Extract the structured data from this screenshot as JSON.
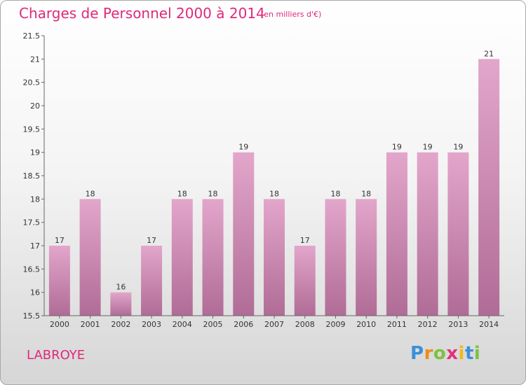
{
  "chart_data": {
    "type": "bar",
    "title": "Charges de Personnel 2000 à 2014",
    "subtitle": "(en milliers d'€)",
    "categories": [
      "2000",
      "2001",
      "2002",
      "2003",
      "2004",
      "2005",
      "2006",
      "2007",
      "2008",
      "2009",
      "2010",
      "2011",
      "2012",
      "2013",
      "2014"
    ],
    "values": [
      17,
      18,
      16,
      17,
      18,
      18,
      19,
      18,
      17,
      18,
      18,
      19,
      19,
      19,
      21
    ],
    "data_labels": [
      "17",
      "18",
      "16",
      "17",
      "18",
      "18",
      "19",
      "18",
      "17",
      "18",
      "18",
      "19",
      "19",
      "19",
      "21"
    ],
    "xlabel": "",
    "ylabel": "",
    "ylim": [
      15.5,
      21.5
    ],
    "yticks": [
      15.5,
      16,
      16.5,
      17,
      17.5,
      18,
      18.5,
      19,
      19.5,
      20,
      20.5,
      21,
      21.5
    ],
    "ytick_labels": [
      "15.5",
      "16",
      "16.5",
      "17",
      "17.5",
      "18",
      "18.5",
      "19",
      "19.5",
      "20",
      "20.5",
      "21",
      "21.5"
    ],
    "grid": false,
    "bar_color_top": "#e3a6cb",
    "bar_color_bottom": "#b06c96"
  },
  "footer": {
    "commune": "LABROYE"
  },
  "logo": {
    "letters": [
      {
        "char": "P",
        "color": "#3b8fd8"
      },
      {
        "char": "r",
        "color": "#f08a1c"
      },
      {
        "char": "o",
        "color": "#7cc242"
      },
      {
        "char": "x",
        "color": "#e2337a"
      },
      {
        "char": "i",
        "color": "#f0b81c"
      },
      {
        "char": "t",
        "color": "#3b8fd8"
      },
      {
        "char": "i",
        "color": "#7cc242"
      }
    ]
  },
  "colors": {
    "accent": "#e0287a"
  }
}
